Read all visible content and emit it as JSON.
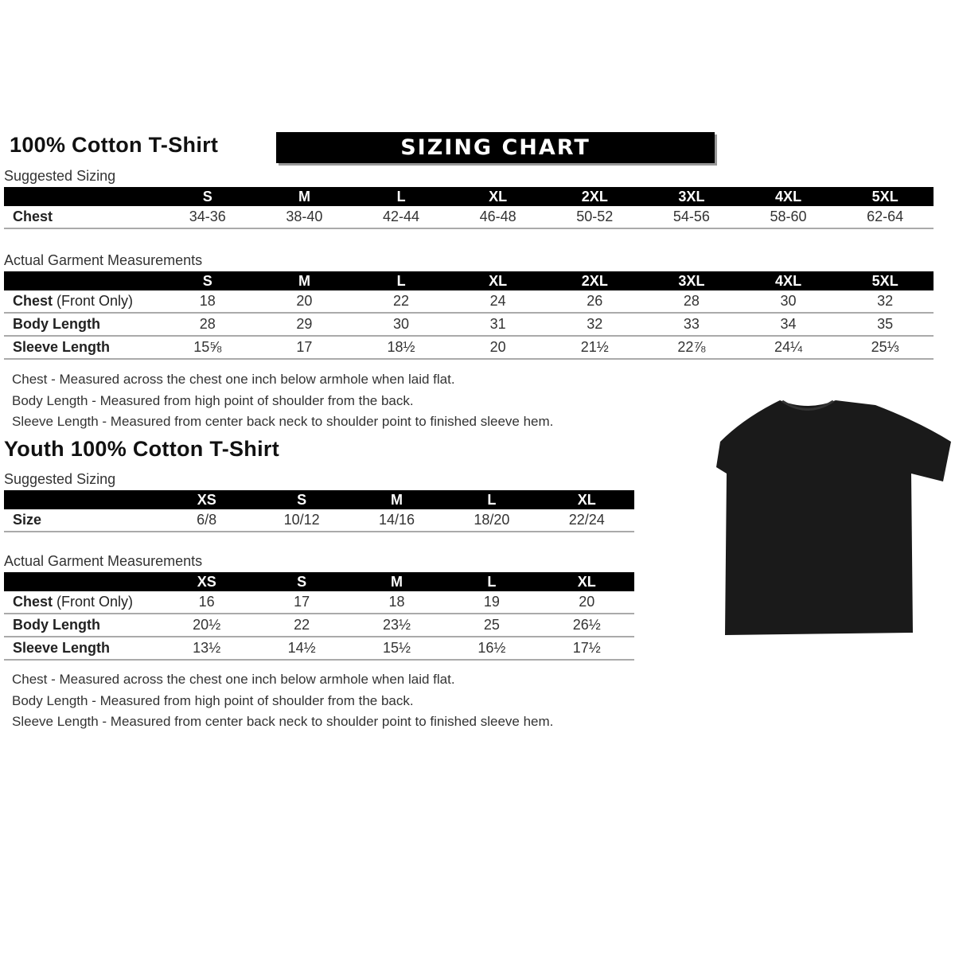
{
  "banner": "SIZING CHART",
  "adult": {
    "title": "100% Cotton T-Shirt",
    "suggested_label": "Suggested Sizing",
    "sizes": [
      "S",
      "M",
      "L",
      "XL",
      "2XL",
      "3XL",
      "4XL",
      "5XL"
    ],
    "suggested_rows": [
      {
        "label": "Chest",
        "values": [
          "34-36",
          "38-40",
          "42-44",
          "46-48",
          "50-52",
          "54-56",
          "58-60",
          "62-64"
        ]
      }
    ],
    "actual_label": "Actual Garment Measurements",
    "actual_rows": [
      {
        "label": "Chest",
        "label_note": "(Front Only)",
        "values": [
          "18",
          "20",
          "22",
          "24",
          "26",
          "28",
          "30",
          "32"
        ]
      },
      {
        "label": "Body Length",
        "label_note": "",
        "values": [
          "28",
          "29",
          "30",
          "31",
          "32",
          "33",
          "34",
          "35"
        ]
      },
      {
        "label": "Sleeve Length",
        "label_note": "",
        "values": [
          "15⅝",
          "17",
          "18½",
          "20",
          "21½",
          "22⅞",
          "24¼",
          "25⅓"
        ]
      }
    ],
    "notes": [
      "Chest - Measured across the chest one inch below armhole when laid flat.",
      "Body Length - Measured from high point of shoulder from the back.",
      "Sleeve Length - Measured from center back neck to shoulder point to finished sleeve hem."
    ]
  },
  "youth": {
    "title": "Youth 100% Cotton T-Shirt",
    "suggested_label": "Suggested Sizing",
    "sizes": [
      "XS",
      "S",
      "M",
      "L",
      "XL"
    ],
    "suggested_rows": [
      {
        "label": "Size",
        "values": [
          "6/8",
          "10/12",
          "14/16",
          "18/20",
          "22/24"
        ]
      }
    ],
    "actual_label": "Actual Garment Measurements",
    "actual_rows": [
      {
        "label": "Chest",
        "label_note": "(Front Only)",
        "values": [
          "16",
          "17",
          "18",
          "19",
          "20"
        ]
      },
      {
        "label": "Body Length",
        "label_note": "",
        "values": [
          "20½",
          "22",
          "23½",
          "25",
          "26½"
        ]
      },
      {
        "label": "Sleeve Length",
        "label_note": "",
        "values": [
          "13½",
          "14½",
          "15½",
          "16½",
          "17½"
        ]
      }
    ],
    "notes": [
      "Chest - Measured across the chest one inch below armhole when laid flat.",
      "Body Length - Measured from high point of shoulder from the back.",
      "Sleeve Length - Measured from center back neck to shoulder point to finished sleeve hem."
    ]
  },
  "colors": {
    "header": "#000000",
    "shirt": "#1a1a1a"
  }
}
